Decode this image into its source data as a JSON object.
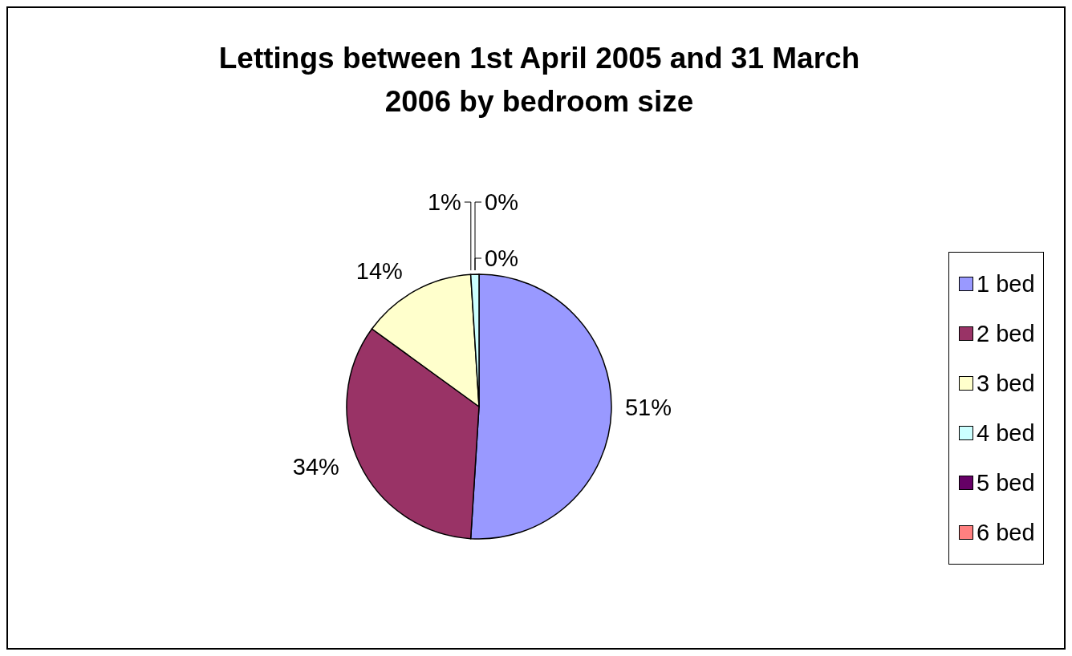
{
  "chart_data": {
    "type": "pie",
    "title": "Lettings between 1st April 2005 and 31 March 2006 by bedroom size",
    "categories": [
      "1 bed",
      "2 bed",
      "3 bed",
      "4 bed",
      "5 bed",
      "6 bed"
    ],
    "values": [
      51,
      34,
      14,
      1,
      0,
      0
    ],
    "value_labels": [
      "51%",
      "34%",
      "14%",
      "1%",
      "0%",
      "0%"
    ],
    "colors": [
      "#9999ff",
      "#993366",
      "#ffffcc",
      "#ccffff",
      "#660066",
      "#ff8080"
    ],
    "legend": "right"
  }
}
